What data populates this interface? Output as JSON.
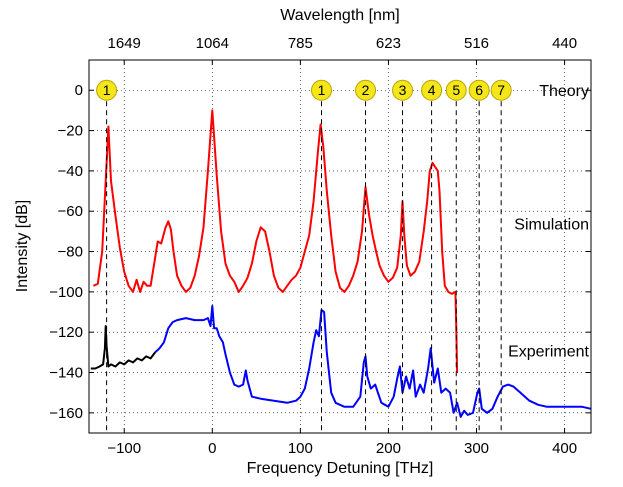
{
  "chart_data": {
    "type": "line",
    "xlabel": "Frequency Detuning [THz]",
    "ylabel": "Intensity [dB]",
    "top_xlabel": "Wavelength [nm]",
    "xlim": [
      -140,
      430
    ],
    "ylim": [
      -170,
      15
    ],
    "grid": true,
    "xticks": [
      -100,
      0,
      100,
      200,
      300,
      400
    ],
    "xtick_labels": [
      "−100",
      "0",
      "100",
      "200",
      "300",
      "400"
    ],
    "yticks": [
      0,
      -20,
      -40,
      -60,
      -80,
      -100,
      -120,
      -140,
      -160
    ],
    "ytick_labels": [
      "0",
      "−20",
      "−40",
      "−60",
      "−80",
      "−100",
      "−120",
      "−140",
      "−160"
    ],
    "top_ticks": [
      {
        "x": -100,
        "label": "1649"
      },
      {
        "x": 0,
        "label": "1064"
      },
      {
        "x": 100,
        "label": "785"
      },
      {
        "x": 200,
        "label": "623"
      },
      {
        "x": 300,
        "label": "516"
      },
      {
        "x": 400,
        "label": "440"
      }
    ],
    "annotations": [
      {
        "text": "Theory",
        "y": 0
      },
      {
        "text": "Simulation",
        "y": -66
      },
      {
        "text": "Experiment",
        "y": -129
      }
    ],
    "theory_markers": [
      {
        "label": "1",
        "x": -120
      },
      {
        "label": "1",
        "x": 124
      },
      {
        "label": "2",
        "x": 174
      },
      {
        "label": "3",
        "x": 216
      },
      {
        "label": "4",
        "x": 249
      },
      {
        "label": "5",
        "x": 277
      },
      {
        "label": "6",
        "x": 303
      },
      {
        "label": "7",
        "x": 328
      }
    ],
    "marker_fill": "#f5e61a",
    "marker_stroke": "#b8a400",
    "series": [
      {
        "color": "#ff0000",
        "points": [
          [
            -135,
            -97
          ],
          [
            -130,
            -96
          ],
          [
            -125,
            -80
          ],
          [
            -121,
            -45
          ],
          [
            -118,
            -18
          ],
          [
            -115,
            -45
          ],
          [
            -110,
            -62
          ],
          [
            -105,
            -78
          ],
          [
            -100,
            -90
          ],
          [
            -95,
            -97
          ],
          [
            -90,
            -100
          ],
          [
            -86,
            -94
          ],
          [
            -82,
            -100
          ],
          [
            -78,
            -95
          ],
          [
            -74,
            -97
          ],
          [
            -70,
            -97
          ],
          [
            -66,
            -86
          ],
          [
            -62,
            -75
          ],
          [
            -58,
            -76
          ],
          [
            -53,
            -68
          ],
          [
            -50,
            -65
          ],
          [
            -47,
            -69
          ],
          [
            -44,
            -80
          ],
          [
            -40,
            -92
          ],
          [
            -35,
            -97
          ],
          [
            -30,
            -100
          ],
          [
            -25,
            -98
          ],
          [
            -20,
            -92
          ],
          [
            -15,
            -82
          ],
          [
            -10,
            -68
          ],
          [
            -5,
            -40
          ],
          [
            0,
            -10
          ],
          [
            5,
            -42
          ],
          [
            10,
            -70
          ],
          [
            15,
            -86
          ],
          [
            20,
            -92
          ],
          [
            25,
            -95
          ],
          [
            30,
            -100
          ],
          [
            35,
            -97
          ],
          [
            40,
            -93
          ],
          [
            45,
            -86
          ],
          [
            50,
            -75
          ],
          [
            55,
            -68
          ],
          [
            60,
            -70
          ],
          [
            65,
            -80
          ],
          [
            70,
            -92
          ],
          [
            75,
            -98
          ],
          [
            80,
            -100
          ],
          [
            85,
            -97
          ],
          [
            90,
            -94
          ],
          [
            95,
            -92
          ],
          [
            100,
            -88
          ],
          [
            105,
            -80
          ],
          [
            110,
            -72
          ],
          [
            115,
            -55
          ],
          [
            120,
            -30
          ],
          [
            123,
            -17
          ],
          [
            126,
            -28
          ],
          [
            130,
            -50
          ],
          [
            135,
            -72
          ],
          [
            140,
            -90
          ],
          [
            145,
            -98
          ],
          [
            150,
            -100
          ],
          [
            155,
            -97
          ],
          [
            160,
            -92
          ],
          [
            165,
            -85
          ],
          [
            170,
            -70
          ],
          [
            174,
            -48
          ],
          [
            178,
            -62
          ],
          [
            182,
            -72
          ],
          [
            186,
            -80
          ],
          [
            190,
            -87
          ],
          [
            195,
            -92
          ],
          [
            200,
            -95
          ],
          [
            205,
            -93
          ],
          [
            210,
            -88
          ],
          [
            214,
            -72
          ],
          [
            216,
            -55
          ],
          [
            218,
            -72
          ],
          [
            221,
            -87
          ],
          [
            225,
            -92
          ],
          [
            230,
            -90
          ],
          [
            235,
            -85
          ],
          [
            240,
            -70
          ],
          [
            244,
            -55
          ],
          [
            247,
            -40
          ],
          [
            250,
            -36
          ],
          [
            253,
            -38
          ],
          [
            256,
            -40
          ],
          [
            258,
            -50
          ],
          [
            261,
            -80
          ],
          [
            264,
            -97
          ],
          [
            268,
            -100
          ],
          [
            272,
            -101
          ],
          [
            276,
            -100
          ],
          [
            277,
            -118
          ],
          [
            278,
            -140
          ]
        ]
      },
      {
        "color": "#000000",
        "points": [
          [
            -138,
            -138
          ],
          [
            -133,
            -138
          ],
          [
            -128,
            -137
          ],
          [
            -124,
            -136
          ],
          [
            -122,
            -128
          ],
          [
            -121,
            -117
          ],
          [
            -120,
            -127
          ],
          [
            -118,
            -137
          ],
          [
            -115,
            -136
          ],
          [
            -110,
            -137
          ],
          [
            -105,
            -135
          ],
          [
            -100,
            -136
          ],
          [
            -95,
            -134
          ],
          [
            -90,
            -135
          ],
          [
            -85,
            -133
          ],
          [
            -80,
            -134
          ],
          [
            -75,
            -132
          ],
          [
            -70,
            -133
          ],
          [
            -65,
            -130
          ]
        ]
      },
      {
        "color": "#0000ff",
        "points": [
          [
            -65,
            -130
          ],
          [
            -60,
            -128
          ],
          [
            -55,
            -125
          ],
          [
            -50,
            -118
          ],
          [
            -45,
            -115
          ],
          [
            -40,
            -114
          ],
          [
            -30,
            -113
          ],
          [
            -20,
            -114
          ],
          [
            -10,
            -114
          ],
          [
            -5,
            -113
          ],
          [
            -2,
            -117
          ],
          [
            0,
            -107
          ],
          [
            2,
            -118
          ],
          [
            5,
            -118
          ],
          [
            8,
            -122
          ],
          [
            12,
            -125
          ],
          [
            15,
            -131
          ],
          [
            20,
            -140
          ],
          [
            25,
            -146
          ],
          [
            30,
            -147
          ],
          [
            35,
            -146
          ],
          [
            38,
            -139
          ],
          [
            40,
            -144
          ],
          [
            45,
            -152
          ],
          [
            55,
            -153
          ],
          [
            70,
            -154
          ],
          [
            85,
            -155
          ],
          [
            95,
            -154
          ],
          [
            100,
            -152
          ],
          [
            105,
            -148
          ],
          [
            110,
            -138
          ],
          [
            115,
            -125
          ],
          [
            118,
            -119
          ],
          [
            121,
            -122
          ],
          [
            124,
            -109
          ],
          [
            127,
            -110
          ],
          [
            130,
            -130
          ],
          [
            135,
            -150
          ],
          [
            140,
            -155
          ],
          [
            150,
            -157
          ],
          [
            160,
            -157
          ],
          [
            168,
            -152
          ],
          [
            172,
            -135
          ],
          [
            174,
            -132
          ],
          [
            176,
            -142
          ],
          [
            180,
            -148
          ],
          [
            185,
            -146
          ],
          [
            188,
            -150
          ],
          [
            192,
            -155
          ],
          [
            200,
            -157
          ],
          [
            206,
            -152
          ],
          [
            210,
            -143
          ],
          [
            213,
            -137
          ],
          [
            216,
            -150
          ],
          [
            220,
            -142
          ],
          [
            224,
            -148
          ],
          [
            228,
            -139
          ],
          [
            231,
            -152
          ],
          [
            236,
            -146
          ],
          [
            240,
            -150
          ],
          [
            245,
            -138
          ],
          [
            248,
            -128
          ],
          [
            252,
            -145
          ],
          [
            256,
            -138
          ],
          [
            260,
            -150
          ],
          [
            265,
            -148
          ],
          [
            270,
            -150
          ],
          [
            274,
            -160
          ],
          [
            278,
            -155
          ],
          [
            282,
            -162
          ],
          [
            286,
            -159
          ],
          [
            290,
            -161
          ],
          [
            296,
            -160
          ],
          [
            301,
            -150
          ],
          [
            303,
            -148
          ],
          [
            306,
            -158
          ],
          [
            312,
            -160
          ],
          [
            318,
            -158
          ],
          [
            324,
            -152
          ],
          [
            330,
            -147
          ],
          [
            336,
            -146
          ],
          [
            342,
            -147
          ],
          [
            350,
            -150
          ],
          [
            360,
            -154
          ],
          [
            370,
            -156
          ],
          [
            380,
            -157
          ],
          [
            390,
            -157
          ],
          [
            400,
            -157
          ],
          [
            410,
            -157
          ],
          [
            420,
            -157
          ],
          [
            430,
            -158
          ]
        ]
      }
    ]
  }
}
